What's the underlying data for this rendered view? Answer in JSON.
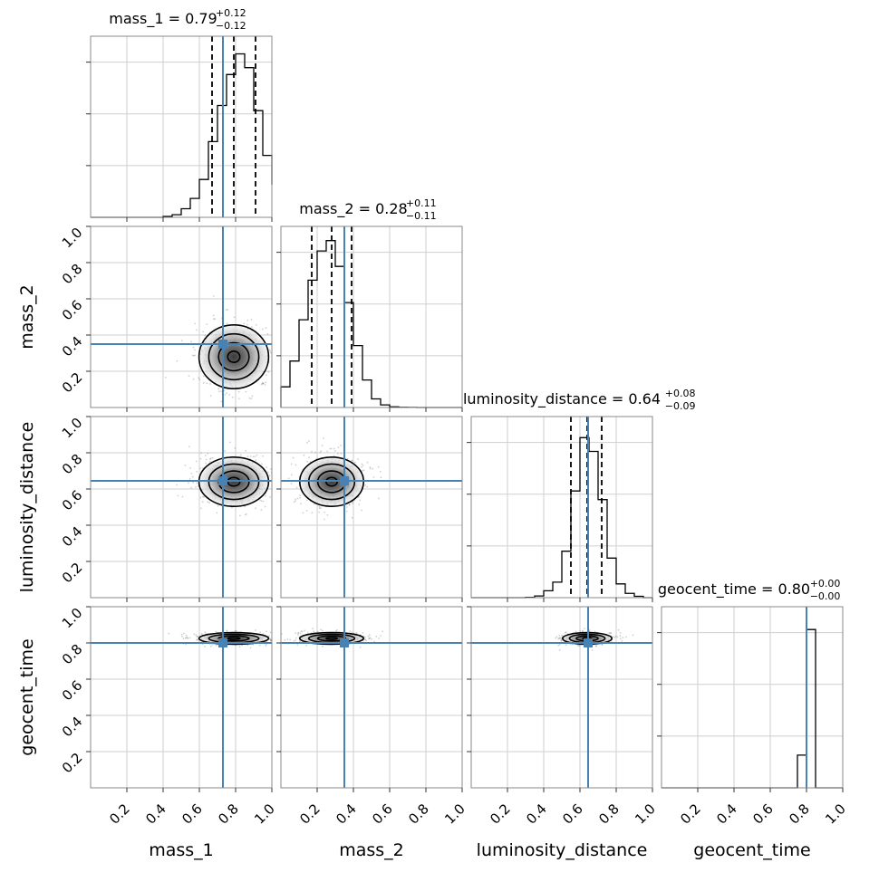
{
  "figure": {
    "kind": "corner plot"
  },
  "chart_data": {
    "type": "corner",
    "parameters": [
      "mass_1",
      "mass_2",
      "luminosity_distance",
      "geocent_time"
    ],
    "truth": {
      "mass_1": 0.73,
      "mass_2": 0.35,
      "luminosity_distance": 0.645,
      "geocent_time": 0.8
    },
    "axis_range": [
      0,
      1
    ],
    "tick_labels": [
      "0.2",
      "0.4",
      "0.6",
      "0.8",
      "1.0"
    ],
    "tick_values": [
      0.2,
      0.4,
      0.6,
      0.8,
      1.0
    ],
    "titles": [
      {
        "param": "mass_1",
        "name": "mass_1 = 0.79",
        "plus": "+0.12",
        "minus": "−0.12"
      },
      {
        "param": "mass_2",
        "name": "mass_2 = 0.28",
        "plus": "+0.11",
        "minus": "−0.11"
      },
      {
        "param": "luminosity_distance",
        "name": "luminosity_distance = 0.64",
        "plus": "+0.08",
        "minus": "−0.09"
      },
      {
        "param": "geocent_time",
        "name": "geocent_time = 0.80",
        "plus": "+0.00",
        "minus": "−0.00"
      }
    ],
    "quantiles": {
      "mass_1": [
        0.67,
        0.79,
        0.91
      ],
      "mass_2": [
        0.17,
        0.28,
        0.39
      ],
      "luminosity_distance": [
        0.55,
        0.64,
        0.72
      ],
      "geocent_time": [
        0.8,
        0.8,
        0.8
      ]
    },
    "histograms": {
      "mass_1": {
        "bins": [
          0.4,
          0.45,
          0.5,
          0.55,
          0.6,
          0.65,
          0.7,
          0.75,
          0.8,
          0.85,
          0.9,
          0.95,
          1.0
        ],
        "values": [
          0.005,
          0.015,
          0.05,
          0.11,
          0.22,
          0.44,
          0.65,
          0.83,
          0.95,
          0.87,
          0.62,
          0.36,
          0.19
        ]
      },
      "mass_2": {
        "bins": [
          0.0,
          0.05,
          0.1,
          0.15,
          0.2,
          0.25,
          0.3,
          0.35,
          0.4,
          0.45,
          0.5,
          0.55,
          0.6,
          0.65,
          0.7,
          0.75
        ],
        "values": [
          0.12,
          0.27,
          0.51,
          0.74,
          0.91,
          0.97,
          0.82,
          0.61,
          0.36,
          0.16,
          0.05,
          0.015,
          0.004,
          0.001,
          0.0005
        ]
      },
      "luminosity_distance": {
        "bins": [
          0.3,
          0.35,
          0.4,
          0.45,
          0.5,
          0.55,
          0.6,
          0.65,
          0.7,
          0.75,
          0.8,
          0.85,
          0.9,
          0.95
        ],
        "values": [
          0.002,
          0.01,
          0.04,
          0.09,
          0.27,
          0.62,
          0.93,
          0.85,
          0.57,
          0.23,
          0.08,
          0.025,
          0.008
        ]
      },
      "geocent_time": {
        "bins": [
          0.75,
          0.8,
          0.85
        ],
        "values": [
          0.19,
          0.92
        ]
      }
    },
    "posterior_centers": {
      "mass_1_mass_2": [
        0.79,
        0.28
      ],
      "mass_1_luminosity_distance": [
        0.79,
        0.64
      ],
      "mass_2_luminosity_distance": [
        0.28,
        0.64
      ],
      "mass_1_geocent_time": [
        0.79,
        0.825
      ],
      "mass_2_geocent_time": [
        0.28,
        0.825
      ],
      "luminosity_distance_geocent_time": [
        0.64,
        0.825
      ]
    },
    "truth_color": "#4682b4",
    "contour_color": "#000000"
  }
}
